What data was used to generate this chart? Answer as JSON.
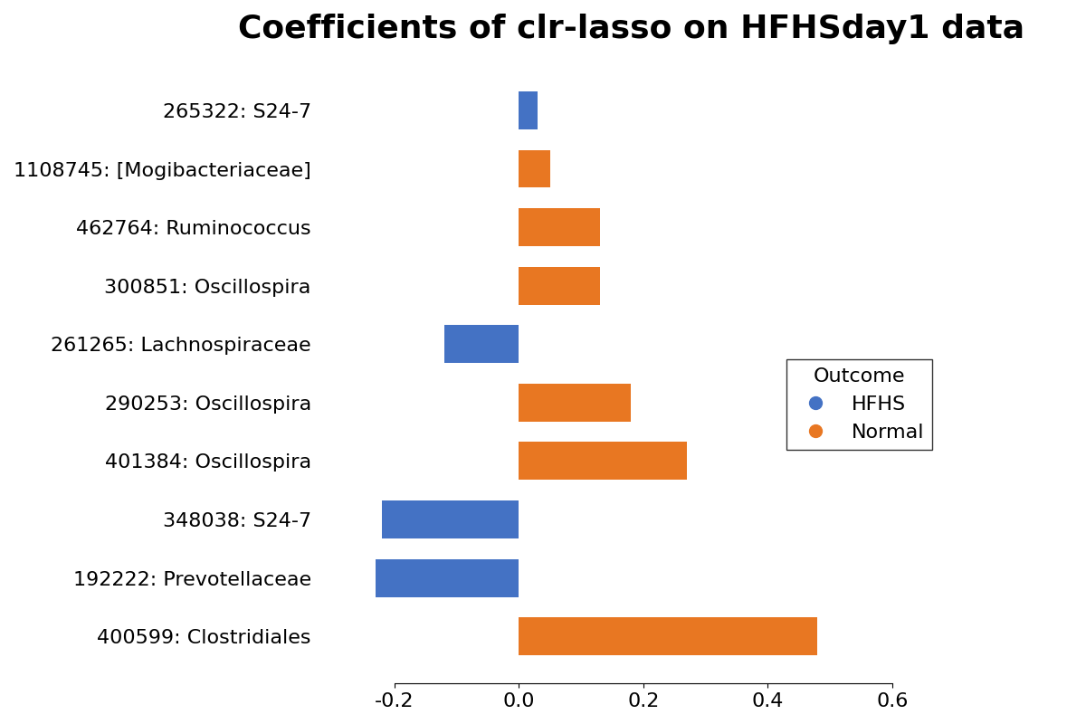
{
  "title": "Coefficients of clr-lasso on HFHSday1 data",
  "categories": [
    "265322: S24-7",
    "1108745: [Mogibacteriaceae]",
    "462764: Ruminococcus",
    "300851: Oscillospira",
    "261265: Lachnospiraceae",
    "290253: Oscillospira",
    "401384: Oscillospira",
    "348038: S24-7",
    "192222: Prevotellaceae",
    "400599: Clostridiales"
  ],
  "values": [
    0.03,
    0.05,
    0.13,
    0.13,
    -0.12,
    0.18,
    0.27,
    -0.22,
    -0.23,
    0.48
  ],
  "colors": [
    "#4472C4",
    "#E87722",
    "#E87722",
    "#E87722",
    "#4472C4",
    "#E87722",
    "#E87722",
    "#4472C4",
    "#4472C4",
    "#E87722"
  ],
  "xlim": [
    -0.32,
    0.68
  ],
  "xticks": [
    -0.2,
    0.0,
    0.2,
    0.4,
    0.6
  ],
  "xtick_labels": [
    "-0.2",
    "0.0",
    "0.2",
    "0.4",
    "0.6"
  ],
  "legend_title": "Outcome",
  "legend_entries": [
    {
      "label": "HFHS",
      "color": "#4472C4"
    },
    {
      "label": "Normal",
      "color": "#E87722"
    }
  ],
  "background_color": "#FFFFFF",
  "title_fontsize": 26,
  "tick_fontsize": 16,
  "bar_height": 0.65
}
